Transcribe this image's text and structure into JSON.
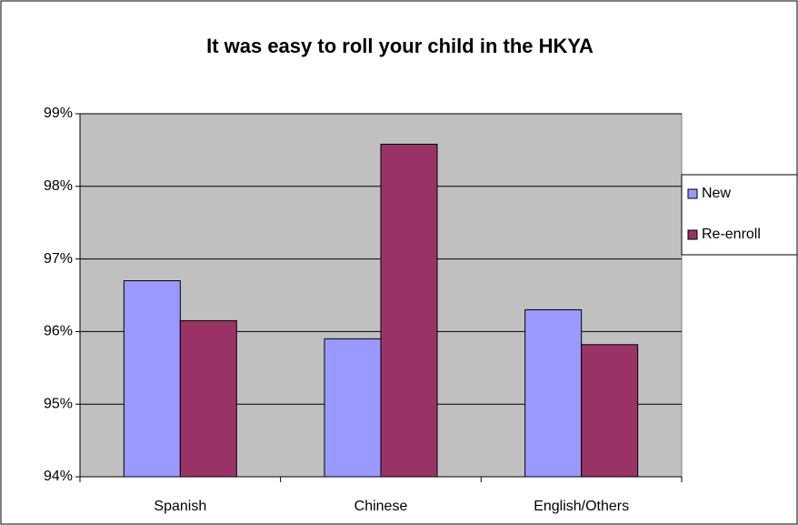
{
  "chart_data": {
    "type": "bar",
    "title": "It was easy to roll your child in the HKYA",
    "categories": [
      "Spanish",
      "Chinese",
      "English/Others"
    ],
    "series": [
      {
        "name": "New",
        "color": "#9999ff",
        "values": [
          96.7,
          95.9,
          96.3
        ]
      },
      {
        "name": "Re-enroll",
        "color": "#993366",
        "values": [
          96.15,
          98.58,
          95.82
        ]
      }
    ],
    "ylim": [
      94,
      99
    ],
    "yticks": [
      {
        "value": 94,
        "label": "94%"
      },
      {
        "value": 95,
        "label": "95%"
      },
      {
        "value": 96,
        "label": "96%"
      },
      {
        "value": 97,
        "label": "97%"
      },
      {
        "value": 98,
        "label": "98%"
      },
      {
        "value": 99,
        "label": "99%"
      }
    ],
    "grid": true,
    "legend": "right"
  }
}
